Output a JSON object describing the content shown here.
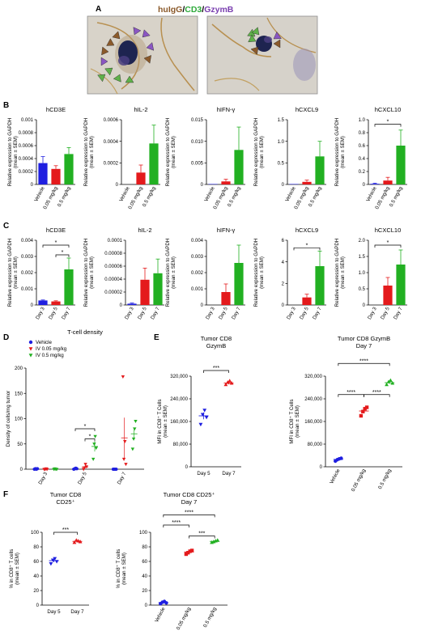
{
  "panels": {
    "a": {
      "label": "A",
      "stain_title": [
        {
          "text": "huIgG",
          "color": "#8b5a2b"
        },
        {
          "text": "/",
          "color": "#000000"
        },
        {
          "text": "CD3",
          "color": "#2eaa3a"
        },
        {
          "text": "/",
          "color": "#000000"
        },
        {
          "text": "GzymB",
          "color": "#7a3fb0"
        }
      ],
      "arrow_colors": {
        "brown": "#8b5a2b",
        "green": "#5fb14a",
        "purple": "#8a56c2"
      }
    },
    "b": {
      "label": "B"
    },
    "c": {
      "label": "C"
    },
    "d": {
      "label": "D"
    },
    "e": {
      "label": "E"
    },
    "f": {
      "label": "F"
    }
  },
  "colors": {
    "vehicle": "#1f1fe0",
    "low": "#e41a1c",
    "high": "#22b022"
  },
  "chart_data": [
    {
      "id": "B-hCD3E",
      "type": "bar",
      "title": "hCD3E",
      "ylabel": "Relative expression to GAPDH\n(mean ± SEM)",
      "categories": [
        "Vehicle",
        "0.05 mg/kg",
        "0.5 mg/kg"
      ],
      "values": [
        0.00033,
        0.00024,
        0.00047
      ],
      "errors": [
        0.0001,
        5e-05,
        0.0001
      ],
      "ylim": [
        0,
        0.001
      ],
      "yticks": [
        "0",
        "0.0002",
        "0.0004",
        "0.0006",
        "0.0008",
        "0.001"
      ],
      "colors": [
        "#1f1fe0",
        "#e41a1c",
        "#22b022"
      ],
      "sig": []
    },
    {
      "id": "B-hIL-2",
      "type": "bar",
      "title": "hIL-2",
      "categories": [
        "Vehicle",
        "0.05 mg/kg",
        "0.5 mg/kg"
      ],
      "values": [
        0,
        0.00011,
        0.00038
      ],
      "errors": [
        0,
        7e-05,
        0.00017
      ],
      "ylim": [
        0,
        0.0006
      ],
      "yticks": [
        "0",
        "0.0002",
        "0.0004",
        "0.0006"
      ],
      "colors": [
        "#1f1fe0",
        "#e41a1c",
        "#22b022"
      ],
      "sig": []
    },
    {
      "id": "B-hIFN-g",
      "type": "bar",
      "title": "hIFN-γ",
      "categories": [
        "Vehicle",
        "0.05 mg/kg",
        "0.5 mg/kg"
      ],
      "values": [
        0.0001,
        0.0007,
        0.008
      ],
      "errors": [
        0,
        0.0005,
        0.0053
      ],
      "ylim": [
        0,
        0.015
      ],
      "yticks": [
        "0",
        "0.005",
        "0.010",
        "0.015"
      ],
      "colors": [
        "#1f1fe0",
        "#e41a1c",
        "#22b022"
      ],
      "sig": []
    },
    {
      "id": "B-hCXCL9",
      "type": "bar",
      "title": "hCXCL9",
      "categories": [
        "Vehicle",
        "0.05 mg/kg",
        "0.5 mg/kg"
      ],
      "values": [
        0.01,
        0.06,
        0.65
      ],
      "errors": [
        0,
        0.04,
        0.35
      ],
      "ylim": [
        0,
        1.5
      ],
      "yticks": [
        "0",
        "0.5",
        "1.0",
        "1.5"
      ],
      "colors": [
        "#1f1fe0",
        "#e41a1c",
        "#22b022"
      ],
      "sig": []
    },
    {
      "id": "B-hCXCL10",
      "type": "bar",
      "title": "hCXCL10",
      "categories": [
        "Vehicle",
        "0.05 mg/kg",
        "0.5 mg/kg"
      ],
      "values": [
        0.01,
        0.06,
        0.6
      ],
      "errors": [
        0.01,
        0.05,
        0.24
      ],
      "ylim": [
        0,
        1.0
      ],
      "yticks": [
        "0",
        "0.2",
        "0.4",
        "0.6",
        "0.8",
        "1.0"
      ],
      "colors": [
        "#1f1fe0",
        "#e41a1c",
        "#22b022"
      ],
      "sig": [
        {
          "from": 0,
          "to": 2,
          "level": 0.93,
          "text": "*"
        }
      ]
    },
    {
      "id": "C-hCD3E",
      "type": "bar",
      "title": "hCD3E",
      "ylabel": "Relative expression to GAPDH\n(mean ± SEM)",
      "categories": [
        "Day 3",
        "Day 5",
        "Day 7"
      ],
      "values": [
        0.00028,
        0.00022,
        0.0022
      ],
      "errors": [
        3e-05,
        4e-05,
        0.0007
      ],
      "ylim": [
        0,
        0.004
      ],
      "yticks": [
        "0",
        "0.001",
        "0.002",
        "0.003",
        "0.004"
      ],
      "colors": [
        "#1f1fe0",
        "#e41a1c",
        "#22b022"
      ],
      "sig": [
        {
          "from": 0,
          "to": 2,
          "level": 0.0037,
          "text": "*"
        },
        {
          "from": 1,
          "to": 2,
          "level": 0.0031,
          "text": "*"
        }
      ]
    },
    {
      "id": "C-hIL-2",
      "type": "bar",
      "title": "hIL-2",
      "categories": [
        "Day 3",
        "Day 5",
        "Day 7"
      ],
      "values": [
        2e-06,
        3.9e-05,
        4.9e-05
      ],
      "errors": [
        1e-06,
        1.8e-05,
        2.2e-05
      ],
      "ylim": [
        0,
        0.0001
      ],
      "yticks": [
        "0",
        "0.00002",
        "0.00004",
        "0.00006",
        "0.00008",
        "0.0001"
      ],
      "colors": [
        "#1f1fe0",
        "#e41a1c",
        "#22b022"
      ],
      "sig": []
    },
    {
      "id": "C-hIFN-g",
      "type": "bar",
      "title": "hIFN-γ",
      "categories": [
        "Day 3",
        "Day 5",
        "Day 7"
      ],
      "values": [
        0,
        0.0008,
        0.0026
      ],
      "errors": [
        0,
        0.0005,
        0.0011
      ],
      "ylim": [
        0,
        0.004
      ],
      "yticks": [
        "0",
        "0.001",
        "0.002",
        "0.003",
        "0.004"
      ],
      "colors": [
        "#1f1fe0",
        "#e41a1c",
        "#22b022"
      ],
      "sig": []
    },
    {
      "id": "C-hCXCL9",
      "type": "bar",
      "title": "hCXCL9",
      "categories": [
        "Day 3",
        "Day 5",
        "Day 7"
      ],
      "values": [
        0,
        0.7,
        3.6
      ],
      "errors": [
        0,
        0.3,
        1.4
      ],
      "ylim": [
        0,
        6
      ],
      "yticks": [
        "0",
        "2",
        "4",
        "6"
      ],
      "colors": [
        "#1f1fe0",
        "#e41a1c",
        "#22b022"
      ],
      "sig": [
        {
          "from": 0,
          "to": 2,
          "level": 5.3,
          "text": "*"
        }
      ]
    },
    {
      "id": "C-hCXCL10",
      "type": "bar",
      "title": "hCXCL10",
      "categories": [
        "Day 3",
        "Day 5",
        "Day 7"
      ],
      "values": [
        0,
        0.6,
        1.25
      ],
      "errors": [
        0,
        0.25,
        0.45
      ],
      "ylim": [
        0,
        2.0
      ],
      "yticks": [
        "0",
        "0.5",
        "1.0",
        "1.5",
        "2.0"
      ],
      "colors": [
        "#1f1fe0",
        "#e41a1c",
        "#22b022"
      ],
      "sig": [
        {
          "from": 0,
          "to": 2,
          "level": 1.85,
          "text": "*"
        }
      ]
    },
    {
      "id": "D",
      "type": "scatter",
      "title": "T-cell density",
      "ylabel": "Density of cells/mg tumor",
      "categories": [
        "Day 3",
        "Day 5",
        "Day 7"
      ],
      "ylim": [
        0,
        200
      ],
      "yticks": [
        "0",
        "50",
        "100",
        "150",
        "200"
      ],
      "legend": [
        {
          "name": "Vehicle",
          "color": "#1f1fe0",
          "marker": "circle"
        },
        {
          "name": "IV 0.05 mg/kg",
          "color": "#e41a1c",
          "marker": "tri-down"
        },
        {
          "name": "IV 0.5 mg/kg",
          "color": "#22b022",
          "marker": "tri-down"
        }
      ],
      "groups": [
        {
          "cat": 0,
          "series": 0,
          "points": [
            0,
            1,
            0,
            1
          ],
          "mean": 0.5,
          "sem": 0.3
        },
        {
          "cat": 0,
          "series": 1,
          "points": [
            0,
            0,
            1,
            0
          ],
          "mean": 0.3,
          "sem": 0.2
        },
        {
          "cat": 0,
          "series": 2,
          "points": [
            0,
            1,
            0,
            0
          ],
          "mean": 0.3,
          "sem": 0.2
        },
        {
          "cat": 1,
          "series": 0,
          "points": [
            0,
            1,
            2,
            1
          ],
          "mean": 1,
          "sem": 0.5
        },
        {
          "cat": 1,
          "series": 1,
          "points": [
            0,
            3,
            10,
            5
          ],
          "mean": 4.5,
          "sem": 2
        },
        {
          "cat": 1,
          "series": 2,
          "points": [
            20,
            50,
            65,
            42
          ],
          "mean": 45,
          "sem": 10
        },
        {
          "cat": 2,
          "series": 0,
          "points": [
            0,
            0,
            0,
            0
          ],
          "mean": 0,
          "sem": 0
        },
        {
          "cat": 2,
          "series": 1,
          "points": [
            183,
            20,
            55,
            10
          ],
          "mean": 62,
          "sem": 40
        },
        {
          "cat": 2,
          "series": 2,
          "points": [
            40,
            60,
            80,
            95
          ],
          "mean": 70,
          "sem": 11
        }
      ],
      "sig": [
        {
          "cat": 1,
          "s_from": 0,
          "s_to": 2,
          "level": 80,
          "text": "*"
        },
        {
          "cat": 1,
          "s_from": 1,
          "s_to": 2,
          "level": 60,
          "text": "*"
        }
      ]
    },
    {
      "id": "E1",
      "type": "scatter",
      "title": "Tumor CD8\nGzymB",
      "ylabel": "MFI in CD8⁺ T Cells\n(mean ± SEM)",
      "categories": [
        "Day 5",
        "Day 7"
      ],
      "ylim": [
        0,
        320000
      ],
      "yticks": [
        "0",
        "80,000",
        "160,000",
        "240,000",
        "320,000"
      ],
      "groups": [
        {
          "cat": 0,
          "color": "#1f1fe0",
          "marker": "tri-down",
          "points": [
            150000,
            185000,
            200000,
            175000
          ],
          "mean": 180000,
          "sem": 12000
        },
        {
          "cat": 1,
          "color": "#e41a1c",
          "marker": "tri-up",
          "points": [
            290000,
            298000,
            303000,
            295000
          ],
          "mean": 296000,
          "sem": 5000
        }
      ],
      "sig": [
        {
          "from": 0,
          "to": 1,
          "level": 340000,
          "text": "***"
        }
      ]
    },
    {
      "id": "E2",
      "type": "scatter",
      "title": "Tumor CD8 GzymB\nDay 7",
      "ylabel": "MFI in CD8⁺ T Cells\n(mean ± SEM)",
      "categories": [
        "Vehicle",
        "0.05 mg/kg",
        "0.5 mg/kg"
      ],
      "ylim": [
        0,
        320000
      ],
      "yticks": [
        "0",
        "80,000",
        "160,000",
        "240,000",
        "320,000"
      ],
      "groups": [
        {
          "cat": 0,
          "color": "#1f1fe0",
          "marker": "circle",
          "points": [
            20000,
            25000,
            28000,
            30000
          ],
          "mean": 26000,
          "sem": 3000
        },
        {
          "cat": 1,
          "color": "#e41a1c",
          "marker": "square",
          "points": [
            180000,
            195000,
            205000,
            210000
          ],
          "mean": 197000,
          "sem": 7000
        },
        {
          "cat": 2,
          "color": "#22b022",
          "marker": "tri-up",
          "points": [
            290000,
            300000,
            305000,
            295000
          ],
          "mean": 297000,
          "sem": 4000
        }
      ],
      "sig": [
        {
          "from": 0,
          "to": 2,
          "level": 365000,
          "text": "****"
        },
        {
          "from": 0,
          "to": 1,
          "level": 255000,
          "text": "****"
        },
        {
          "from": 1,
          "to": 2,
          "level": 255000,
          "text": "****"
        }
      ]
    },
    {
      "id": "F1",
      "type": "scatter",
      "title": "Tumor CD8\nCD25⁺",
      "ylabel": "% in CD8⁺ T cells\n(mean ± SEM)",
      "categories": [
        "Day 5",
        "Day 7"
      ],
      "ylim": [
        0,
        100
      ],
      "yticks": [
        "0",
        "20",
        "40",
        "60",
        "80",
        "100"
      ],
      "groups": [
        {
          "cat": 0,
          "color": "#1f1fe0",
          "marker": "tri-down",
          "points": [
            57,
            62,
            64,
            60
          ],
          "mean": 61,
          "sem": 2
        },
        {
          "cat": 1,
          "color": "#e41a1c",
          "marker": "tri-up",
          "points": [
            86,
            89,
            88,
            87
          ],
          "mean": 87.5,
          "sem": 1
        }
      ],
      "sig": [
        {
          "from": 0,
          "to": 1,
          "level": 100,
          "text": "***"
        }
      ]
    },
    {
      "id": "F2",
      "type": "scatter",
      "title": "Tumor CD8 CD25⁺\nDay 7",
      "ylabel": "% in CD8⁺ T cells\n(mean ± SEM)",
      "categories": [
        "Vehicle",
        "0.05 mg/kg",
        "0.5 mg/kg"
      ],
      "ylim": [
        0,
        100
      ],
      "yticks": [
        "0",
        "20",
        "40",
        "60",
        "80",
        "100"
      ],
      "groups": [
        {
          "cat": 0,
          "color": "#1f1fe0",
          "marker": "circle",
          "points": [
            2,
            4,
            5,
            3
          ],
          "mean": 3.5,
          "sem": 1
        },
        {
          "cat": 1,
          "color": "#e41a1c",
          "marker": "square",
          "points": [
            70,
            72,
            74,
            75
          ],
          "mean": 73,
          "sem": 1.5
        },
        {
          "cat": 2,
          "color": "#22b022",
          "marker": "tri-up",
          "points": [
            86,
            87,
            88,
            89
          ],
          "mean": 87.5,
          "sem": 1
        }
      ],
      "sig": [
        {
          "from": 0,
          "to": 2,
          "level": 124,
          "text": "****"
        },
        {
          "from": 0,
          "to": 1,
          "level": 110,
          "text": "****"
        },
        {
          "from": 1,
          "to": 2,
          "level": 95,
          "text": "***"
        }
      ]
    }
  ]
}
